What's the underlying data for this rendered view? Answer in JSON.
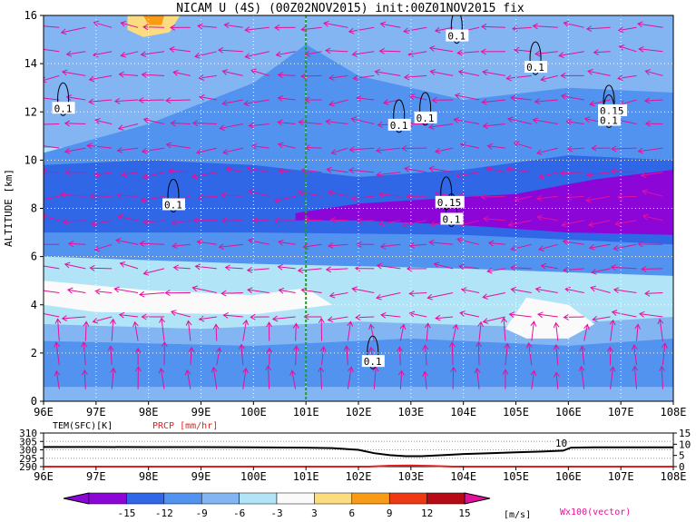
{
  "title": "NICAM U (4S) (00Z02NOV2015) init:00Z01NOV2015 fix",
  "colors": {
    "bar_neg": [
      "#8c06d8",
      "#2f67e6",
      "#5193ee",
      "#83b5f3",
      "#b2e4f7"
    ],
    "bar_pos": [
      "#fafafa",
      "#fbdc80",
      "#f89c18",
      "#ee3a14",
      "#b60a14"
    ],
    "bg_base": "#b2e4f7",
    "vector": "#e6109a",
    "guide_line": "#20a020",
    "prcp": "#e02020"
  },
  "chart_data": [
    {
      "type": "heatmap",
      "title": "NICAM U (4S) (00Z02NOV2015) init:00Z01NOV2015 fix",
      "ylabel": "ALTITUDE [km]",
      "x_ticks": [
        "96E",
        "97E",
        "98E",
        "99E",
        "100E",
        "101E",
        "102E",
        "103E",
        "104E",
        "105E",
        "106E",
        "107E",
        "108E"
      ],
      "y_ticks": [
        "0",
        "2",
        "4",
        "6",
        "8",
        "10",
        "12",
        "14",
        "16"
      ],
      "xlim": [
        96,
        108
      ],
      "ylim": [
        0,
        16
      ],
      "grid": true,
      "vertical_marker_lon": 101,
      "contour_labels": [
        {
          "text": "0.1",
          "lon": 96.2,
          "alt": 12.0
        },
        {
          "text": "0.1",
          "lon": 98.3,
          "alt": 8.0
        },
        {
          "text": "0.1",
          "lon": 103.7,
          "alt": 15.0
        },
        {
          "text": "0.1",
          "lon": 105.2,
          "alt": 13.7
        },
        {
          "text": "0.1",
          "lon": 102.6,
          "alt": 11.3
        },
        {
          "text": "0.1",
          "lon": 103.1,
          "alt": 11.6
        },
        {
          "text": "0.15",
          "lon": 106.6,
          "alt": 11.9
        },
        {
          "text": "0.1",
          "lon": 106.6,
          "alt": 11.5
        },
        {
          "text": "0.15",
          "lon": 103.5,
          "alt": 8.1
        },
        {
          "text": "0.1",
          "lon": 103.6,
          "alt": 7.4
        },
        {
          "text": "0.1",
          "lon": 102.1,
          "alt": 1.5
        }
      ],
      "colorbar": {
        "levels": [
          "-15",
          "-12",
          "-9",
          "-6",
          "-3",
          "3",
          "6",
          "9",
          "12",
          "15"
        ],
        "unit": "[m/s]",
        "vector_label": "Wx100(vector)"
      }
    },
    {
      "type": "line",
      "title": "TEM(SFC)[K]",
      "secondary_title": "PRCP [mm/hr]",
      "x_ticks": [
        "96E",
        "97E",
        "98E",
        "99E",
        "100E",
        "101E",
        "102E",
        "103E",
        "104E",
        "105E",
        "106E",
        "107E",
        "108E"
      ],
      "y_left_ticks": [
        "310",
        "305",
        "300",
        "295",
        "290"
      ],
      "y_right_ticks": [
        "15",
        "10",
        "5",
        "0"
      ],
      "xlim": [
        96,
        108
      ],
      "ylim_left": [
        290,
        310
      ],
      "ylim_right": [
        0,
        15
      ],
      "series": [
        {
          "name": "TEM(SFC)[K]",
          "x": [
            96,
            97,
            98,
            99,
            100,
            101,
            101.5,
            102,
            102.3,
            102.6,
            102.9,
            103.2,
            103.6,
            104,
            104.5,
            105,
            105.5,
            105.9,
            106.05,
            106.5,
            107,
            108
          ],
          "y": [
            301.7,
            301.7,
            301.6,
            301.6,
            301.5,
            301.3,
            301.0,
            300.0,
            298.0,
            296.8,
            296.2,
            296.2,
            296.8,
            297.5,
            298.0,
            298.5,
            299.0,
            299.5,
            301.3,
            301.5,
            301.5,
            301.5
          ]
        },
        {
          "name": "PRCP [mm/hr]",
          "x": [
            96,
            102.2,
            102.6,
            103.0,
            103.4,
            103.8,
            108
          ],
          "y": [
            0,
            0,
            0.4,
            0.5,
            0.3,
            0,
            0
          ]
        }
      ],
      "annotations": [
        {
          "text": "10",
          "lon": 105.75,
          "value_right": 10.5
        }
      ]
    }
  ]
}
